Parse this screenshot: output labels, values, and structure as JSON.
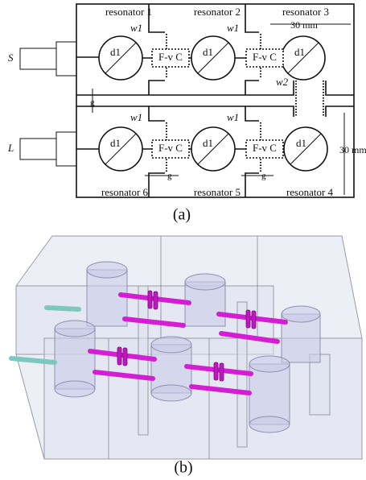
{
  "figure_a": {
    "ports": [
      "S",
      "L"
    ],
    "resonators": [
      "resonator  1",
      "resonator  2",
      "resonator  3",
      "resonator  6",
      "resonator  5",
      "resonator  4"
    ],
    "diameters": [
      "d1",
      "d1",
      "d1",
      "d1",
      "d1",
      "d1"
    ],
    "couplers": [
      "F-v C",
      "F-v C",
      "F-v C",
      "F-v C"
    ],
    "iris_widths": [
      "w1",
      "w1",
      "w1",
      "w1",
      "w2"
    ],
    "gaps": [
      "g",
      "g",
      "g"
    ],
    "dimensions": [
      "30 mm",
      "30 mm"
    ],
    "caption": "(a)"
  },
  "figure_b": {
    "caption": "(b)"
  }
}
